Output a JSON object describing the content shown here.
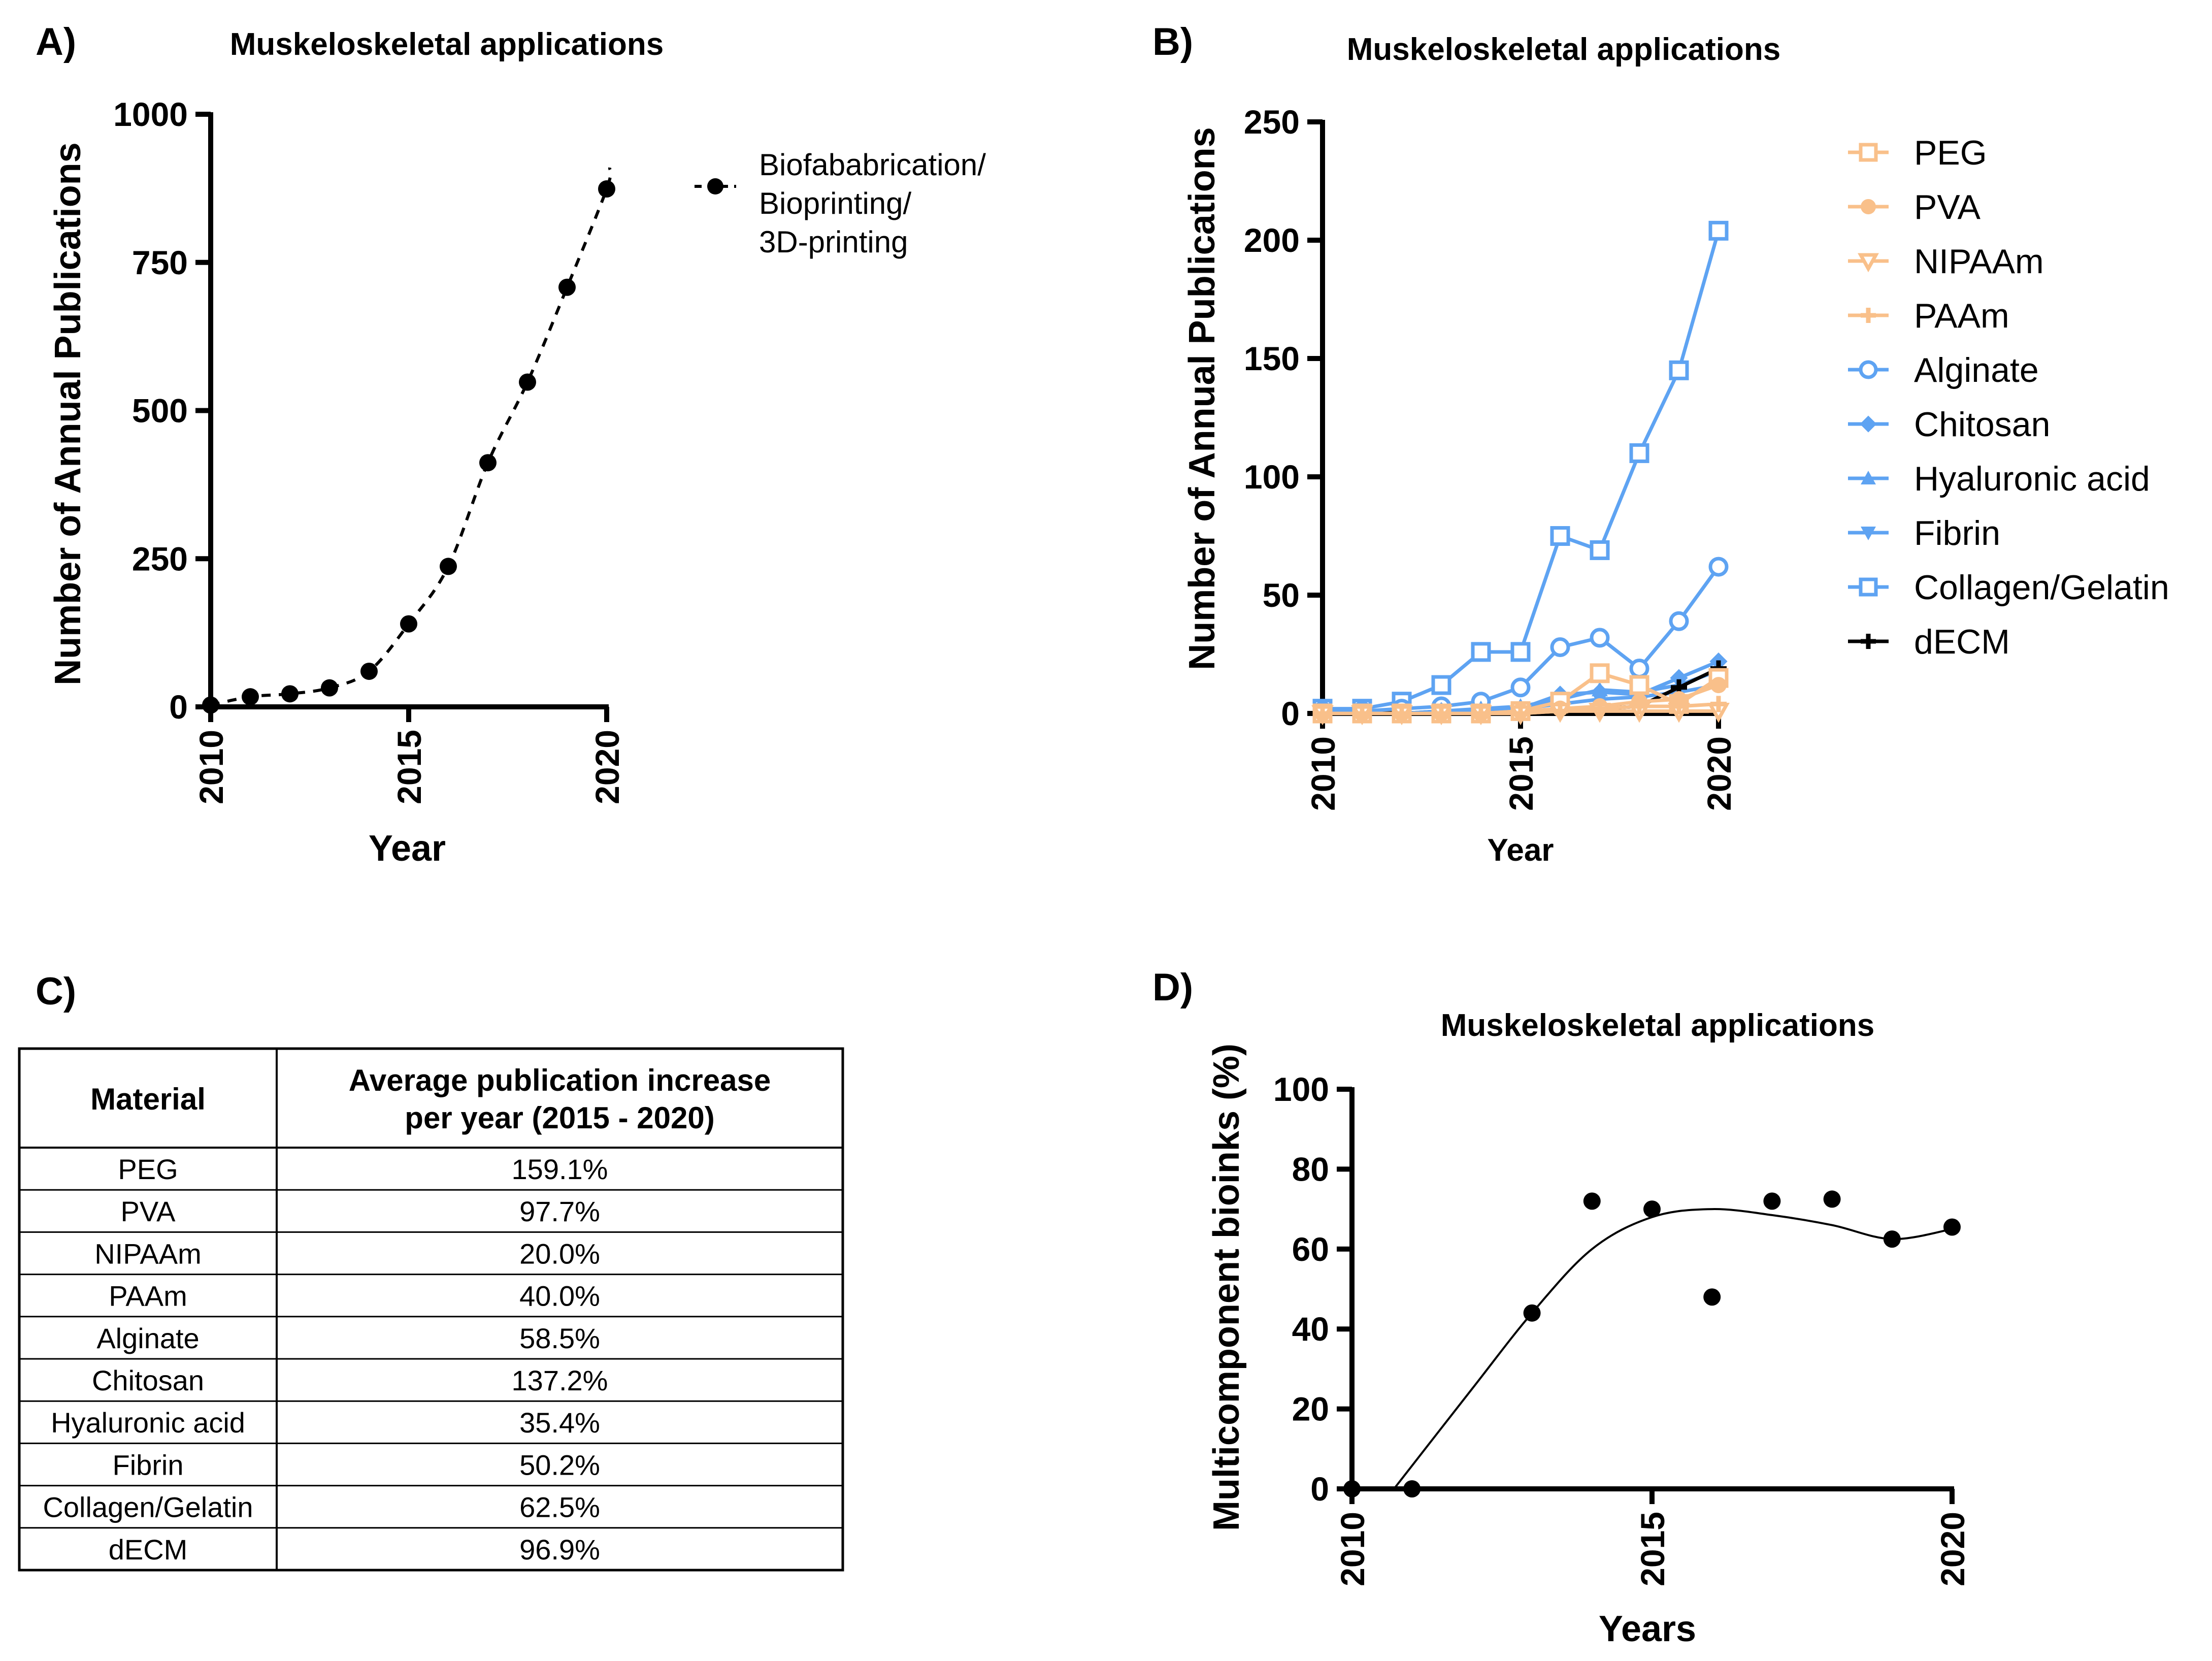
{
  "panels": {
    "a": {
      "label": "A)"
    },
    "b": {
      "label": "B)"
    },
    "c": {
      "label": "C)"
    },
    "d": {
      "label": "D)"
    }
  },
  "chart_data": [
    {
      "id": "A",
      "type": "scatter",
      "title": "Muskeloskeletal applications",
      "xlabel": "Year",
      "ylabel": "Number of Annual Publications",
      "xlim": [
        2010,
        2020
      ],
      "ylim": [
        0,
        1000
      ],
      "xticks": [
        2010,
        2015,
        2020
      ],
      "yticks": [
        0,
        250,
        500,
        750,
        1000
      ],
      "legend_position": "right",
      "series": [
        {
          "name": "Biofababrication/ Bioprinting/ 3D-printing",
          "name_lines": [
            "Biofababrication/",
            "Bioprinting/",
            "3D-printing"
          ],
          "x": [
            2010,
            2011,
            2012,
            2013,
            2014,
            2015,
            2016,
            2017,
            2018,
            2019,
            2020
          ],
          "values": [
            3,
            17,
            22,
            32,
            60,
            140,
            237,
            412,
            548,
            708,
            874
          ],
          "fit": "dashed curve",
          "color": "#000000"
        }
      ]
    },
    {
      "id": "B",
      "type": "line",
      "title": "Muskeloskeletal applications",
      "xlabel": "Year",
      "ylabel": "Number of Annual Publications",
      "xlim": [
        2010,
        2020
      ],
      "ylim": [
        0,
        250
      ],
      "xticks": [
        2010,
        2015,
        2020
      ],
      "yticks": [
        0,
        50,
        100,
        150,
        200,
        250
      ],
      "legend_position": "right",
      "x": [
        2010,
        2011,
        2012,
        2013,
        2014,
        2015,
        2016,
        2017,
        2018,
        2019,
        2020
      ],
      "series": [
        {
          "name": "PEG",
          "marker": "square-open",
          "color": "#F9C08A",
          "values": [
            0,
            0,
            0,
            0,
            0,
            1,
            5,
            17,
            12,
            4,
            15
          ]
        },
        {
          "name": "PVA",
          "marker": "circle-filled",
          "color": "#F9C08A",
          "values": [
            0,
            0,
            0,
            0,
            0,
            1,
            2,
            3,
            5,
            6,
            12
          ]
        },
        {
          "name": "NIPAAm",
          "marker": "triangle-down-open",
          "color": "#F9C08A",
          "values": [
            0,
            0,
            0,
            0,
            0,
            0,
            1,
            1,
            1,
            1,
            1
          ]
        },
        {
          "name": "PAAm",
          "marker": "plus",
          "color": "#F9C08A",
          "values": [
            0,
            0,
            0,
            0,
            0,
            0,
            1,
            2,
            3,
            3,
            4
          ]
        },
        {
          "name": "Alginate",
          "marker": "circle-open",
          "color": "#5EA3F2",
          "values": [
            1,
            1,
            2,
            3,
            5,
            11,
            28,
            32,
            19,
            39,
            62
          ]
        },
        {
          "name": "Chitosan",
          "marker": "diamond-filled",
          "color": "#5EA3F2",
          "values": [
            0,
            0,
            0,
            1,
            1,
            2,
            8,
            9,
            8,
            15,
            22
          ]
        },
        {
          "name": "Hyaluronic acid",
          "marker": "triangle-up-filled",
          "color": "#5EA3F2",
          "values": [
            0,
            0,
            0,
            1,
            2,
            3,
            6,
            10,
            9,
            12,
            18
          ]
        },
        {
          "name": "Fibrin",
          "marker": "triangle-down-filled",
          "color": "#5EA3F2",
          "values": [
            0,
            0,
            0,
            1,
            1,
            2,
            4,
            6,
            7,
            9,
            12
          ]
        },
        {
          "name": "Collagen/Gelatin",
          "marker": "square-open",
          "color": "#5EA3F2",
          "values": [
            2,
            2,
            5,
            12,
            26,
            26,
            75,
            69,
            110,
            145,
            204
          ]
        },
        {
          "name": "dECM",
          "marker": "plus",
          "color": "#000000",
          "values": [
            0,
            0,
            0,
            0,
            0,
            0,
            1,
            2,
            3,
            11,
            19
          ]
        }
      ]
    },
    {
      "id": "C",
      "type": "table",
      "columns": [
        "Material",
        "Average publication increase per year (2015 - 2020)"
      ],
      "header_lines": [
        [
          "Material"
        ],
        [
          "Average publication increase",
          "per year (2015 - 2020)"
        ]
      ],
      "rows": [
        [
          "PEG",
          "159.1%"
        ],
        [
          "PVA",
          "97.7%"
        ],
        [
          "NIPAAm",
          "20.0%"
        ],
        [
          "PAAm",
          "40.0%"
        ],
        [
          "Alginate",
          "58.5%"
        ],
        [
          "Chitosan",
          "137.2%"
        ],
        [
          "Hyaluronic acid",
          "35.4%"
        ],
        [
          "Fibrin",
          "50.2%"
        ],
        [
          "Collagen/Gelatin",
          "62.5%"
        ],
        [
          "dECM",
          "96.9%"
        ]
      ]
    },
    {
      "id": "D",
      "type": "scatter",
      "title": "Muskeloskeletal applications",
      "xlabel": "Years",
      "ylabel": "Multicomponent bioinks  (%)",
      "xlim": [
        2010,
        2020
      ],
      "ylim": [
        0,
        100
      ],
      "xticks": [
        2010,
        2015,
        2020
      ],
      "yticks": [
        0,
        20,
        40,
        60,
        80,
        100
      ],
      "x": [
        2010,
        2011,
        2012,
        2013,
        2014,
        2015,
        2016,
        2017,
        2018,
        2019,
        2020
      ],
      "series": [
        {
          "name": "Multicomponent bioinks",
          "values": [
            0,
            0,
            44,
            72,
            70,
            48,
            72,
            72.5,
            62.5,
            65.5
          ],
          "x": [
            2010,
            2011,
            2013,
            2014,
            2015,
            2016,
            2017,
            2018,
            2019,
            2020
          ],
          "fit": "solid curve",
          "fit_x": [
            2010.7,
            2012,
            2013,
            2014,
            2015,
            2016,
            2017,
            2018,
            2019,
            2020
          ],
          "fit_values": [
            0,
            25,
            44,
            60,
            68,
            70,
            68.5,
            66,
            62.5,
            65
          ],
          "color": "#000000"
        }
      ]
    }
  ]
}
